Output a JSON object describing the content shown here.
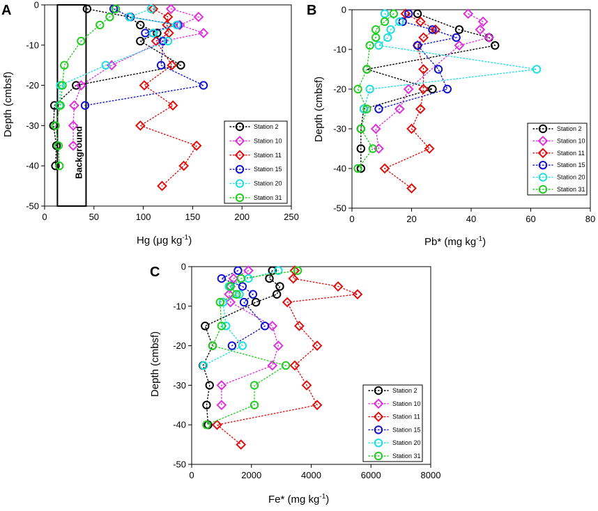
{
  "chart_data": [
    {
      "type": "scatter",
      "panel_label": "A",
      "xlabel_main": "Hg (",
      "xlabel_unit": "μg kg",
      "xlabel_sup": "-1",
      "xlabel_close": ")",
      "ylabel": "Depth (cmbsf)",
      "xlim": [
        0,
        250
      ],
      "ylim": [
        -50,
        0
      ],
      "xticks": [
        0,
        50,
        100,
        150,
        200,
        250
      ],
      "yticks": [
        0,
        -10,
        -20,
        -30,
        -40,
        -50
      ],
      "background_label": "Background",
      "background_x_range": [
        13,
        42
      ],
      "series": [
        {
          "name": "Station 2",
          "color": "#000000",
          "marker": "circle",
          "points": [
            [
              43,
              -1
            ],
            [
              86,
              -3
            ],
            [
              97,
              -5
            ],
            [
              114,
              -7
            ],
            [
              97,
              -9
            ],
            [
              138,
              -15
            ],
            [
              32,
              -20
            ],
            [
              10,
              -25
            ],
            [
              9,
              -30
            ],
            [
              12,
              -35
            ],
            [
              11,
              -40
            ]
          ]
        },
        {
          "name": "Station 10",
          "color": "#dd33dd",
          "marker": "diamond",
          "points": [
            [
              128,
              -1
            ],
            [
              156,
              -3
            ],
            [
              137,
              -5
            ],
            [
              161,
              -7
            ],
            [
              120,
              -9
            ],
            [
              68,
              -15
            ],
            [
              37,
              -20
            ],
            [
              30,
              -25
            ],
            [
              29,
              -30
            ],
            [
              29,
              -35
            ]
          ]
        },
        {
          "name": "Station 11",
          "color": "#dd1111",
          "marker": "diamond",
          "points": [
            [
              110,
              -1
            ],
            [
              125,
              -3
            ],
            [
              124,
              -5
            ],
            [
              126,
              -7
            ],
            [
              113,
              -9
            ],
            [
              129,
              -15
            ],
            [
              101,
              -20
            ],
            [
              130,
              -25
            ],
            [
              97,
              -30
            ],
            [
              154,
              -35
            ],
            [
              141,
              -40
            ],
            [
              119,
              -45
            ]
          ]
        },
        {
          "name": "Station 15",
          "color": "#1111cc",
          "marker": "circle",
          "points": [
            [
              70,
              -1
            ],
            [
              87,
              -3
            ],
            [
              135,
              -5
            ],
            [
              102,
              -7
            ],
            [
              120,
              -9
            ],
            [
              118,
              -15
            ],
            [
              161,
              -20
            ],
            [
              41,
              -25
            ]
          ]
        },
        {
          "name": "Station 20",
          "color": "#22dddd",
          "marker": "circle",
          "points": [
            [
              108,
              -1
            ],
            [
              86,
              -3
            ],
            [
              134,
              -5
            ],
            [
              110,
              -7
            ],
            [
              125,
              -9
            ],
            [
              62,
              -15
            ],
            [
              16,
              -20
            ],
            [
              15,
              -25
            ]
          ]
        },
        {
          "name": "Station 31",
          "color": "#22cc22",
          "marker": "circle",
          "points": [
            [
              72,
              -1
            ],
            [
              66,
              -3
            ],
            [
              56,
              -5
            ],
            [
              37,
              -9
            ],
            [
              20,
              -15
            ],
            [
              18,
              -20
            ],
            [
              16,
              -25
            ],
            [
              11,
              -30
            ],
            [
              14,
              -35
            ],
            [
              15,
              -40
            ]
          ]
        }
      ]
    },
    {
      "type": "scatter",
      "panel_label": "B",
      "xlabel_main": "Pb* (mg kg",
      "xlabel_sup": "-1",
      "xlabel_close": ")",
      "ylabel": "Depth (cmbsf)",
      "xlim": [
        0,
        80
      ],
      "ylim": [
        -50,
        0
      ],
      "xticks": [
        0,
        20,
        40,
        60,
        80
      ],
      "yticks": [
        0,
        -10,
        -20,
        -30,
        -40,
        -50
      ],
      "series": [
        {
          "name": "Station 2",
          "color": "#000000",
          "marker": "circle",
          "points": [
            [
              22,
              -1
            ],
            [
              36,
              -5
            ],
            [
              46,
              -7
            ],
            [
              48,
              -9
            ],
            [
              5,
              -15
            ],
            [
              27,
              -20
            ],
            [
              4,
              -25
            ],
            [
              3,
              -30
            ],
            [
              3,
              -35
            ],
            [
              3,
              -40
            ]
          ]
        },
        {
          "name": "Station 10",
          "color": "#dd33dd",
          "marker": "diamond",
          "points": [
            [
              39,
              -1
            ],
            [
              44,
              -3
            ],
            [
              43,
              -5
            ],
            [
              46,
              -7
            ],
            [
              36,
              -9
            ],
            [
              19,
              -20
            ],
            [
              16,
              -25
            ],
            [
              8,
              -30
            ],
            [
              9,
              -35
            ]
          ]
        },
        {
          "name": "Station 11",
          "color": "#dd1111",
          "marker": "diamond",
          "points": [
            [
              18,
              -1
            ],
            [
              23,
              -3
            ],
            [
              28,
              -5
            ],
            [
              24,
              -7
            ],
            [
              22,
              -9
            ],
            [
              24,
              -15
            ],
            [
              24,
              -20
            ],
            [
              23,
              -25
            ],
            [
              20,
              -30
            ],
            [
              26,
              -35
            ],
            [
              11,
              -40
            ],
            [
              20,
              -45
            ]
          ]
        },
        {
          "name": "Station 15",
          "color": "#1111cc",
          "marker": "circle",
          "points": [
            [
              19,
              -1
            ],
            [
              17,
              -3
            ],
            [
              27,
              -5
            ],
            [
              35,
              -7
            ],
            [
              22,
              -9
            ],
            [
              29,
              -15
            ],
            [
              32,
              -20
            ],
            [
              9,
              -25
            ]
          ]
        },
        {
          "name": "Station 20",
          "color": "#22dddd",
          "marker": "circle",
          "points": [
            [
              11,
              -1
            ],
            [
              16,
              -3
            ],
            [
              13,
              -5
            ],
            [
              12,
              -7
            ],
            [
              9,
              -9
            ],
            [
              62,
              -15
            ],
            [
              6,
              -20
            ],
            [
              4,
              -25
            ]
          ]
        },
        {
          "name": "Station 31",
          "color": "#22cc22",
          "marker": "circle",
          "points": [
            [
              14,
              -1
            ],
            [
              11,
              -3
            ],
            [
              8,
              -5
            ],
            [
              8,
              -7
            ],
            [
              6,
              -9
            ],
            [
              5,
              -15
            ],
            [
              2,
              -20
            ],
            [
              5,
              -25
            ],
            [
              3,
              -30
            ],
            [
              7,
              -35
            ],
            [
              2,
              -40
            ]
          ]
        }
      ]
    },
    {
      "type": "scatter",
      "panel_label": "C",
      "xlabel_main": "Fe* (mg kg",
      "xlabel_sup": "-1",
      "xlabel_close": ")",
      "ylabel": "Depth (cmbsf)",
      "xlim": [
        0,
        8000
      ],
      "ylim": [
        -50,
        0
      ],
      "xticks": [
        0,
        2000,
        4000,
        6000,
        8000
      ],
      "yticks": [
        0,
        -10,
        -20,
        -30,
        -40,
        -50
      ],
      "series": [
        {
          "name": "Station 2",
          "color": "#000000",
          "marker": "circle",
          "points": [
            [
              2700,
              -1
            ],
            [
              2600,
              -3
            ],
            [
              2950,
              -5
            ],
            [
              2850,
              -7
            ],
            [
              2150,
              -9
            ],
            [
              450,
              -15
            ],
            [
              700,
              -20
            ],
            [
              380,
              -25
            ],
            [
              600,
              -30
            ],
            [
              500,
              -35
            ],
            [
              550,
              -40
            ]
          ]
        },
        {
          "name": "Station 10",
          "color": "#dd33dd",
          "marker": "diamond",
          "points": [
            [
              1900,
              -1
            ],
            [
              1400,
              -3
            ],
            [
              1300,
              -5
            ],
            [
              1250,
              -7
            ],
            [
              1300,
              -9
            ],
            [
              2700,
              -15
            ],
            [
              2900,
              -20
            ],
            [
              2700,
              -25
            ],
            [
              1000,
              -30
            ],
            [
              1000,
              -35
            ]
          ]
        },
        {
          "name": "Station 11",
          "color": "#dd1111",
          "marker": "diamond",
          "points": [
            [
              3450,
              -1
            ],
            [
              3400,
              -3
            ],
            [
              4900,
              -5
            ],
            [
              5550,
              -7
            ],
            [
              3200,
              -9
            ],
            [
              3600,
              -15
            ],
            [
              4200,
              -20
            ],
            [
              3450,
              -25
            ],
            [
              3850,
              -30
            ],
            [
              4200,
              -35
            ],
            [
              850,
              -40
            ],
            [
              1650,
              -45
            ]
          ]
        },
        {
          "name": "Station 15",
          "color": "#1111cc",
          "marker": "circle",
          "points": [
            [
              1550,
              -1
            ],
            [
              1000,
              -3
            ],
            [
              1700,
              -5
            ],
            [
              2050,
              -7
            ],
            [
              1750,
              -9
            ],
            [
              2450,
              -15
            ],
            [
              1350,
              -20
            ]
          ]
        },
        {
          "name": "Station 20",
          "color": "#22dddd",
          "marker": "circle",
          "points": [
            [
              2900,
              -1
            ],
            [
              1900,
              -3
            ],
            [
              1250,
              -5
            ],
            [
              1600,
              -7
            ],
            [
              1050,
              -9
            ],
            [
              1150,
              -15
            ],
            [
              1700,
              -20
            ],
            [
              400,
              -25
            ]
          ]
        },
        {
          "name": "Station 31",
          "color": "#22cc22",
          "marker": "circle",
          "points": [
            [
              3550,
              -1
            ],
            [
              1650,
              -3
            ],
            [
              1300,
              -5
            ],
            [
              1500,
              -7
            ],
            [
              950,
              -9
            ],
            [
              1000,
              -15
            ],
            [
              700,
              -20
            ],
            [
              3150,
              -25
            ],
            [
              2100,
              -30
            ],
            [
              2100,
              -35
            ],
            [
              500,
              -40
            ]
          ]
        }
      ]
    }
  ]
}
